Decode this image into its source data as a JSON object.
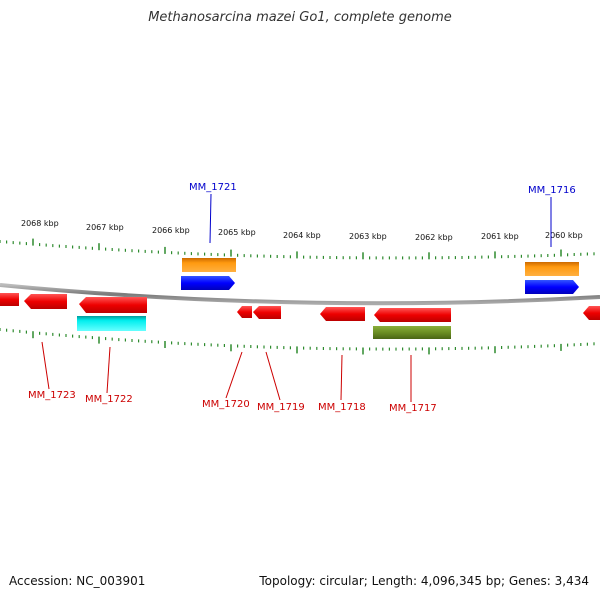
{
  "title": "Methanosarcina mazei Go1, complete genome",
  "footer": {
    "accession": "Accession: NC_003901",
    "summary": "Topology: circular; Length: 4,096,345 bp; Genes: 3,434"
  },
  "colors": {
    "background": "#ffffff",
    "backbone": "#8c8c8c",
    "ticks": "#2e8b2e",
    "gene_forward": "#ff0000",
    "gene_reverse": "#ff0000",
    "label_red": "#cc0000",
    "label_blue": "#0000cc",
    "cds_orange": "#ff8c00",
    "cds_blue": "#0000ff",
    "cds_cyan": "#00ffff",
    "cds_olive": "#6b8e23"
  },
  "scale_labels": [
    "2068 kbp",
    "2067 kbp",
    "2066 kbp",
    "2065 kbp",
    "2064 kbp",
    "2063 kbp",
    "2062 kbp",
    "2061 kbp",
    "2060 kbp"
  ],
  "gene_labels": [
    {
      "text": "MM_1721",
      "color": "blue"
    },
    {
      "text": "MM_1716",
      "color": "blue"
    },
    {
      "text": "MM_1723",
      "color": "red"
    },
    {
      "text": "MM_1722",
      "color": "red"
    },
    {
      "text": "MM_1720",
      "color": "red"
    },
    {
      "text": "MM_1719",
      "color": "red"
    },
    {
      "text": "MM_1718",
      "color": "red"
    },
    {
      "text": "MM_1717",
      "color": "red"
    }
  ]
}
